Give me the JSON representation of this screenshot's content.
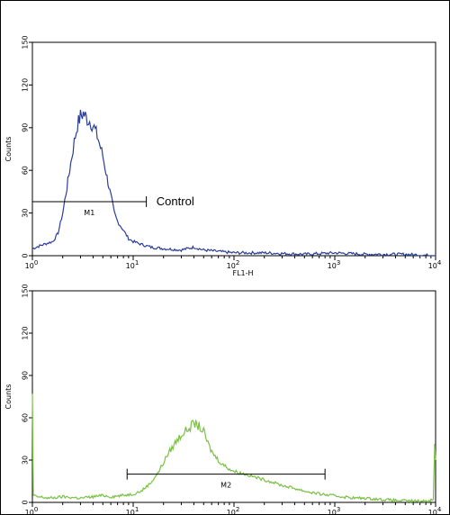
{
  "chart_data": [
    {
      "type": "line",
      "plot": "flow-cytometry-histogram",
      "color": "#2b3f97",
      "xscale": "log",
      "xlim": [
        1,
        10000
      ],
      "ylim": [
        0,
        150
      ],
      "xticks": [
        1,
        10,
        100,
        1000,
        10000
      ],
      "xtick_labels": [
        {
          "base": "10",
          "exp": "0"
        },
        {
          "base": "10",
          "exp": "1"
        },
        {
          "base": "10",
          "exp": "2"
        },
        {
          "base": "10",
          "exp": "3"
        },
        {
          "base": "10",
          "exp": "4"
        }
      ],
      "yticks": [
        0,
        30,
        60,
        90,
        120,
        150
      ],
      "ytick_labels": [
        "0",
        "30",
        "60",
        "90",
        "120",
        "150"
      ],
      "xlabel": "FL1-H",
      "ylabel": "Counts",
      "series": [
        {
          "x": [
            1,
            1.3,
            1.6,
            1.8,
            2,
            2.2,
            2.4,
            2.6,
            2.8,
            3,
            3.2,
            3.5,
            3.8,
            4.1,
            4.5,
            5,
            5.5,
            6,
            6.5,
            7,
            8,
            9,
            10,
            12,
            15,
            20,
            30,
            40,
            50,
            70,
            100,
            200,
            500,
            1000,
            2000,
            5000,
            10000
          ],
          "y": [
            5,
            8,
            10,
            16,
            30,
            48,
            65,
            80,
            92,
            98,
            100,
            96,
            94,
            90,
            82,
            70,
            55,
            42,
            30,
            24,
            18,
            12,
            10,
            8,
            6,
            5,
            4,
            6,
            4,
            3,
            2,
            2,
            1,
            2,
            1,
            1,
            0
          ]
        }
      ],
      "gates": [
        {
          "label": "M1",
          "x_start": 1,
          "x_end": 13.5,
          "y": 38
        }
      ],
      "annotations": [
        {
          "text": "Control",
          "x": 17,
          "y": 38
        }
      ]
    },
    {
      "type": "line",
      "plot": "flow-cytometry-histogram",
      "color": "#79c043",
      "xscale": "log",
      "xlim": [
        1,
        10000
      ],
      "ylim": [
        0,
        150
      ],
      "xticks": [
        1,
        10,
        100,
        1000,
        10000
      ],
      "xtick_labels": [
        {
          "base": "10",
          "exp": "0"
        },
        {
          "base": "10",
          "exp": "1"
        },
        {
          "base": "10",
          "exp": "2"
        },
        {
          "base": "10",
          "exp": "3"
        },
        {
          "base": "10",
          "exp": "4"
        }
      ],
      "yticks": [
        0,
        30,
        60,
        90,
        120,
        150
      ],
      "ytick_labels": [
        "0",
        "30",
        "60",
        "90",
        "120",
        "150"
      ],
      "xlabel": "",
      "ylabel": "Counts",
      "series": [
        {
          "x": [
            1,
            1.02,
            1.1,
            1.5,
            2,
            3,
            4,
            5,
            6,
            8,
            10,
            12,
            15,
            18,
            22,
            26,
            30,
            35,
            40,
            45,
            50,
            55,
            60,
            70,
            80,
            100,
            130,
            160,
            200,
            250,
            300,
            400,
            500,
            700,
            900,
            1200,
            1600,
            2000,
            3000,
            5000,
            8000,
            9500,
            9800,
            10000
          ],
          "y": [
            75,
            5,
            4,
            3,
            4,
            3,
            4,
            5,
            4,
            5,
            6,
            8,
            14,
            22,
            34,
            42,
            48,
            52,
            56,
            54,
            50,
            42,
            36,
            30,
            26,
            22,
            20,
            18,
            16,
            14,
            12,
            10,
            8,
            6,
            5,
            4,
            3,
            3,
            2,
            1,
            1,
            2,
            40,
            30
          ]
        }
      ],
      "gates": [
        {
          "label": "M2",
          "x_start": 8.7,
          "x_end": 800,
          "y": 20
        }
      ],
      "annotations": []
    }
  ]
}
